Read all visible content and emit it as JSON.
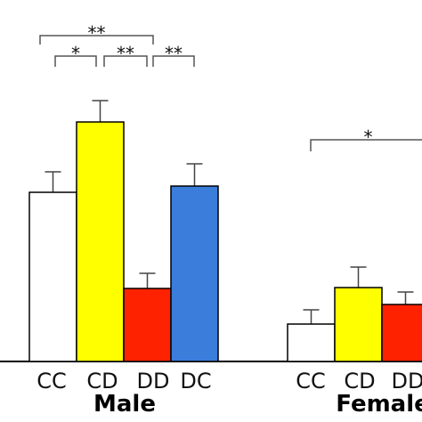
{
  "chart_data": {
    "type": "bar",
    "ylim": [
      0,
      300
    ],
    "groups": [
      {
        "name": "Male",
        "categories": [
          "CC",
          "CD",
          "DD",
          "DC"
        ],
        "values": [
          190,
          269,
          82,
          197
        ],
        "errors": [
          23,
          24,
          17,
          25
        ],
        "colors": [
          "#ffffff",
          "#ffff00",
          "#ff2200",
          "#3a7ddb"
        ]
      },
      {
        "name": "Female",
        "categories": [
          "CC",
          "CD",
          "DD"
        ],
        "values": [
          42,
          83,
          64
        ],
        "errors": [
          16,
          23,
          14
        ],
        "colors": [
          "#ffffff",
          "#ffff00",
          "#ff2200"
        ]
      }
    ],
    "annotations": [
      "**",
      "*",
      "**",
      "**",
      "*"
    ]
  }
}
